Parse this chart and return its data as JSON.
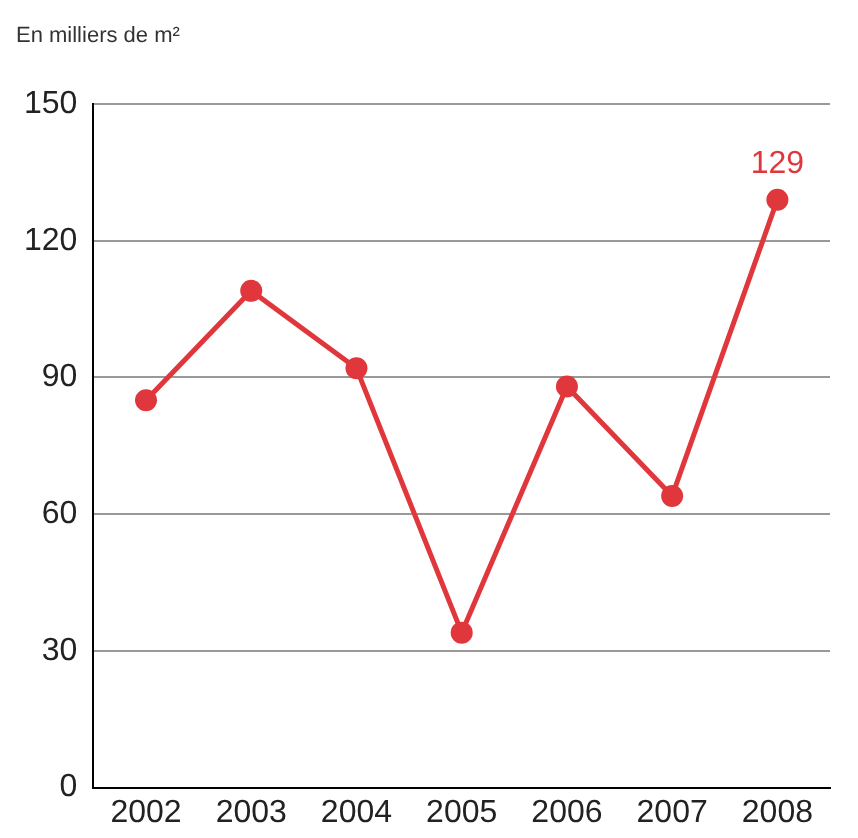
{
  "chart_data": {
    "type": "line",
    "ylabel": "En milliers de m²",
    "categories": [
      "2002",
      "2003",
      "2004",
      "2005",
      "2006",
      "2007",
      "2008"
    ],
    "series": [
      {
        "color": "#e0373c",
        "values": [
          85,
          109,
          92,
          34,
          88,
          64,
          129
        ],
        "value_labels": [
          null,
          null,
          null,
          null,
          null,
          null,
          "129"
        ]
      }
    ],
    "ylim": [
      0,
      150
    ],
    "yticks": [
      0,
      30,
      60,
      90,
      120,
      150
    ],
    "grid": "y",
    "legend": false,
    "marker": "circle",
    "line_style": "solid"
  }
}
